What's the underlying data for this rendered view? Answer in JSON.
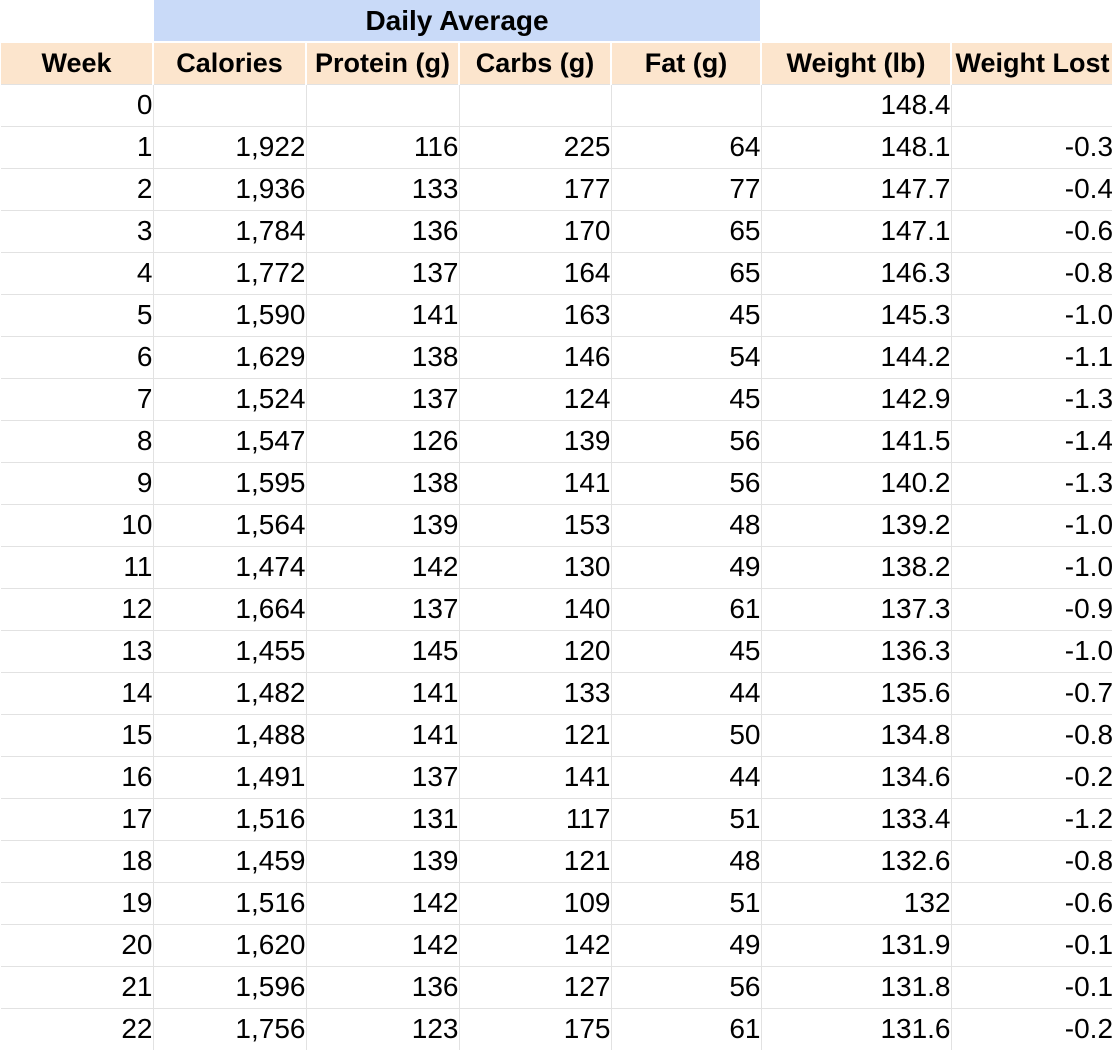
{
  "table": {
    "group_header": {
      "label": "Daily Average"
    },
    "columns": [
      "Week",
      "Calories",
      "Protein (g)",
      "Carbs (g)",
      "Fat (g)",
      "Weight (lb)",
      "Weight Lost"
    ],
    "column_keys": [
      "week",
      "calories",
      "protein-g",
      "carbs-g",
      "fat-g",
      "weight-lb",
      "weight-lost"
    ],
    "rows": [
      [
        "0",
        "",
        "",
        "",
        "",
        "148.4",
        ""
      ],
      [
        "1",
        "1,922",
        "116",
        "225",
        "64",
        "148.1",
        "-0.3"
      ],
      [
        "2",
        "1,936",
        "133",
        "177",
        "77",
        "147.7",
        "-0.4"
      ],
      [
        "3",
        "1,784",
        "136",
        "170",
        "65",
        "147.1",
        "-0.6"
      ],
      [
        "4",
        "1,772",
        "137",
        "164",
        "65",
        "146.3",
        "-0.8"
      ],
      [
        "5",
        "1,590",
        "141",
        "163",
        "45",
        "145.3",
        "-1.0"
      ],
      [
        "6",
        "1,629",
        "138",
        "146",
        "54",
        "144.2",
        "-1.1"
      ],
      [
        "7",
        "1,524",
        "137",
        "124",
        "45",
        "142.9",
        "-1.3"
      ],
      [
        "8",
        "1,547",
        "126",
        "139",
        "56",
        "141.5",
        "-1.4"
      ],
      [
        "9",
        "1,595",
        "138",
        "141",
        "56",
        "140.2",
        "-1.3"
      ],
      [
        "10",
        "1,564",
        "139",
        "153",
        "48",
        "139.2",
        "-1.0"
      ],
      [
        "11",
        "1,474",
        "142",
        "130",
        "49",
        "138.2",
        "-1.0"
      ],
      [
        "12",
        "1,664",
        "137",
        "140",
        "61",
        "137.3",
        "-0.9"
      ],
      [
        "13",
        "1,455",
        "145",
        "120",
        "45",
        "136.3",
        "-1.0"
      ],
      [
        "14",
        "1,482",
        "141",
        "133",
        "44",
        "135.6",
        "-0.7"
      ],
      [
        "15",
        "1,488",
        "141",
        "121",
        "50",
        "134.8",
        "-0.8"
      ],
      [
        "16",
        "1,491",
        "137",
        "141",
        "44",
        "134.6",
        "-0.2"
      ],
      [
        "17",
        "1,516",
        "131",
        "117",
        "51",
        "133.4",
        "-1.2"
      ],
      [
        "18",
        "1,459",
        "139",
        "121",
        "48",
        "132.6",
        "-0.8"
      ],
      [
        "19",
        "1,516",
        "142",
        "109",
        "51",
        "132",
        "-0.6"
      ],
      [
        "20",
        "1,620",
        "142",
        "142",
        "49",
        "131.9",
        "-0.1"
      ],
      [
        "21",
        "1,596",
        "136",
        "127",
        "56",
        "131.8",
        "-0.1"
      ],
      [
        "22",
        "1,756",
        "123",
        "175",
        "61",
        "131.6",
        "-0.2"
      ]
    ]
  },
  "colors": {
    "group_header_bg": "#c9daf8",
    "column_header_bg": "#fce5cd",
    "gridline": "#e2e2e2",
    "cell_bg": "#ffffff",
    "text": "#000000"
  }
}
